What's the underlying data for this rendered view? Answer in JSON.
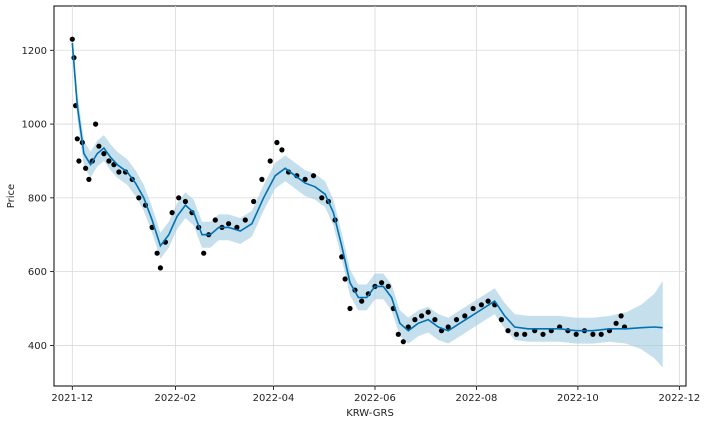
{
  "chart_data": {
    "type": "line",
    "title": "",
    "xlabel": "KRW-GRS",
    "ylabel": "Price",
    "x_range": [
      "2021-11-20",
      "2022-12-05"
    ],
    "ylim": [
      290,
      1320
    ],
    "grid": true,
    "x_ticks": [
      {
        "date": "2021-12-01",
        "label": "2021-12"
      },
      {
        "date": "2022-02-01",
        "label": "2022-02"
      },
      {
        "date": "2022-04-01",
        "label": "2022-04"
      },
      {
        "date": "2022-06-01",
        "label": "2022-06"
      },
      {
        "date": "2022-08-01",
        "label": "2022-08"
      },
      {
        "date": "2022-10-01",
        "label": "2022-10"
      },
      {
        "date": "2022-12-01",
        "label": "2022-12"
      }
    ],
    "y_ticks": [
      400,
      600,
      800,
      1000,
      1200
    ],
    "colors": {
      "observed": "#000000",
      "forecast": "#0072b2",
      "interval": "#9ecae1"
    },
    "series": [
      {
        "role": "observed",
        "points": [
          [
            "2021-12-01",
            1230
          ],
          [
            "2021-12-02",
            1180
          ],
          [
            "2021-12-03",
            1050
          ],
          [
            "2021-12-04",
            960
          ],
          [
            "2021-12-05",
            900
          ],
          [
            "2021-12-07",
            950
          ],
          [
            "2021-12-09",
            880
          ],
          [
            "2021-12-11",
            850
          ],
          [
            "2021-12-13",
            900
          ],
          [
            "2021-12-15",
            1000
          ],
          [
            "2021-12-17",
            940
          ],
          [
            "2021-12-20",
            920
          ],
          [
            "2021-12-23",
            900
          ],
          [
            "2021-12-26",
            890
          ],
          [
            "2021-12-29",
            870
          ],
          [
            "2022-01-02",
            870
          ],
          [
            "2022-01-06",
            850
          ],
          [
            "2022-01-10",
            800
          ],
          [
            "2022-01-14",
            780
          ],
          [
            "2022-01-18",
            720
          ],
          [
            "2022-01-21",
            650
          ],
          [
            "2022-01-23",
            610
          ],
          [
            "2022-01-26",
            680
          ],
          [
            "2022-01-30",
            760
          ],
          [
            "2022-02-03",
            800
          ],
          [
            "2022-02-07",
            790
          ],
          [
            "2022-02-11",
            760
          ],
          [
            "2022-02-15",
            720
          ],
          [
            "2022-02-18",
            650
          ],
          [
            "2022-02-21",
            700
          ],
          [
            "2022-02-25",
            740
          ],
          [
            "2022-03-01",
            720
          ],
          [
            "2022-03-05",
            730
          ],
          [
            "2022-03-10",
            720
          ],
          [
            "2022-03-15",
            740
          ],
          [
            "2022-03-20",
            790
          ],
          [
            "2022-03-25",
            850
          ],
          [
            "2022-03-30",
            900
          ],
          [
            "2022-04-03",
            950
          ],
          [
            "2022-04-06",
            930
          ],
          [
            "2022-04-10",
            870
          ],
          [
            "2022-04-15",
            860
          ],
          [
            "2022-04-20",
            850
          ],
          [
            "2022-04-25",
            860
          ],
          [
            "2022-04-30",
            800
          ],
          [
            "2022-05-04",
            790
          ],
          [
            "2022-05-08",
            740
          ],
          [
            "2022-05-12",
            640
          ],
          [
            "2022-05-14",
            580
          ],
          [
            "2022-05-17",
            500
          ],
          [
            "2022-05-20",
            550
          ],
          [
            "2022-05-24",
            520
          ],
          [
            "2022-05-28",
            540
          ],
          [
            "2022-06-01",
            560
          ],
          [
            "2022-06-05",
            570
          ],
          [
            "2022-06-09",
            560
          ],
          [
            "2022-06-12",
            500
          ],
          [
            "2022-06-15",
            430
          ],
          [
            "2022-06-18",
            410
          ],
          [
            "2022-06-21",
            450
          ],
          [
            "2022-06-25",
            470
          ],
          [
            "2022-06-29",
            480
          ],
          [
            "2022-07-03",
            490
          ],
          [
            "2022-07-07",
            470
          ],
          [
            "2022-07-11",
            440
          ],
          [
            "2022-07-15",
            450
          ],
          [
            "2022-07-20",
            470
          ],
          [
            "2022-07-25",
            480
          ],
          [
            "2022-07-30",
            500
          ],
          [
            "2022-08-04",
            510
          ],
          [
            "2022-08-08",
            520
          ],
          [
            "2022-08-12",
            510
          ],
          [
            "2022-08-16",
            470
          ],
          [
            "2022-08-20",
            440
          ],
          [
            "2022-08-25",
            430
          ],
          [
            "2022-08-30",
            430
          ],
          [
            "2022-09-05",
            440
          ],
          [
            "2022-09-10",
            430
          ],
          [
            "2022-09-15",
            440
          ],
          [
            "2022-09-20",
            450
          ],
          [
            "2022-09-25",
            440
          ],
          [
            "2022-09-30",
            430
          ],
          [
            "2022-10-05",
            440
          ],
          [
            "2022-10-10",
            430
          ],
          [
            "2022-10-15",
            430
          ],
          [
            "2022-10-20",
            440
          ],
          [
            "2022-10-24",
            460
          ],
          [
            "2022-10-27",
            480
          ],
          [
            "2022-10-29",
            450
          ]
        ]
      },
      {
        "role": "forecast",
        "points": [
          [
            "2021-12-01",
            1220
          ],
          [
            "2021-12-04",
            1050
          ],
          [
            "2021-12-08",
            920
          ],
          [
            "2021-12-12",
            890
          ],
          [
            "2021-12-16",
            920
          ],
          [
            "2021-12-20",
            935
          ],
          [
            "2021-12-24",
            910
          ],
          [
            "2021-12-28",
            890
          ],
          [
            "2022-01-03",
            870
          ],
          [
            "2022-01-08",
            840
          ],
          [
            "2022-01-13",
            800
          ],
          [
            "2022-01-18",
            740
          ],
          [
            "2022-01-23",
            670
          ],
          [
            "2022-01-28",
            700
          ],
          [
            "2022-02-02",
            750
          ],
          [
            "2022-02-07",
            780
          ],
          [
            "2022-02-12",
            760
          ],
          [
            "2022-02-17",
            700
          ],
          [
            "2022-02-22",
            700
          ],
          [
            "2022-02-27",
            720
          ],
          [
            "2022-03-05",
            720
          ],
          [
            "2022-03-12",
            710
          ],
          [
            "2022-03-19",
            730
          ],
          [
            "2022-03-26",
            800
          ],
          [
            "2022-04-02",
            860
          ],
          [
            "2022-04-08",
            880
          ],
          [
            "2022-04-14",
            860
          ],
          [
            "2022-04-20",
            840
          ],
          [
            "2022-04-26",
            830
          ],
          [
            "2022-05-02",
            810
          ],
          [
            "2022-05-07",
            760
          ],
          [
            "2022-05-12",
            670
          ],
          [
            "2022-05-17",
            570
          ],
          [
            "2022-05-22",
            530
          ],
          [
            "2022-05-27",
            530
          ],
          [
            "2022-06-01",
            560
          ],
          [
            "2022-06-06",
            560
          ],
          [
            "2022-06-11",
            530
          ],
          [
            "2022-06-16",
            460
          ],
          [
            "2022-06-21",
            440
          ],
          [
            "2022-06-27",
            460
          ],
          [
            "2022-07-03",
            470
          ],
          [
            "2022-07-09",
            450
          ],
          [
            "2022-07-15",
            440
          ],
          [
            "2022-07-22",
            460
          ],
          [
            "2022-07-29",
            480
          ],
          [
            "2022-08-05",
            500
          ],
          [
            "2022-08-12",
            520
          ],
          [
            "2022-08-18",
            480
          ],
          [
            "2022-08-24",
            450
          ],
          [
            "2022-09-01",
            445
          ],
          [
            "2022-09-10",
            445
          ],
          [
            "2022-09-20",
            445
          ],
          [
            "2022-09-30",
            440
          ],
          [
            "2022-10-10",
            440
          ],
          [
            "2022-10-20",
            445
          ],
          [
            "2022-10-30",
            445
          ],
          [
            "2022-11-08",
            448
          ],
          [
            "2022-11-16",
            450
          ],
          [
            "2022-11-21",
            448
          ]
        ],
        "lower": [
          [
            "2021-12-01",
            1190
          ],
          [
            "2021-12-04",
            1015
          ],
          [
            "2021-12-08",
            885
          ],
          [
            "2021-12-12",
            855
          ],
          [
            "2021-12-16",
            885
          ],
          [
            "2021-12-20",
            900
          ],
          [
            "2021-12-24",
            875
          ],
          [
            "2021-12-28",
            855
          ],
          [
            "2022-01-03",
            835
          ],
          [
            "2022-01-08",
            805
          ],
          [
            "2022-01-13",
            765
          ],
          [
            "2022-01-18",
            705
          ],
          [
            "2022-01-23",
            635
          ],
          [
            "2022-01-28",
            665
          ],
          [
            "2022-02-02",
            715
          ],
          [
            "2022-02-07",
            745
          ],
          [
            "2022-02-12",
            725
          ],
          [
            "2022-02-17",
            665
          ],
          [
            "2022-02-22",
            665
          ],
          [
            "2022-02-27",
            685
          ],
          [
            "2022-03-05",
            685
          ],
          [
            "2022-03-12",
            675
          ],
          [
            "2022-03-19",
            695
          ],
          [
            "2022-03-26",
            765
          ],
          [
            "2022-04-02",
            825
          ],
          [
            "2022-04-08",
            845
          ],
          [
            "2022-04-14",
            825
          ],
          [
            "2022-04-20",
            805
          ],
          [
            "2022-04-26",
            795
          ],
          [
            "2022-05-02",
            775
          ],
          [
            "2022-05-07",
            725
          ],
          [
            "2022-05-12",
            635
          ],
          [
            "2022-05-17",
            535
          ],
          [
            "2022-05-22",
            495
          ],
          [
            "2022-05-27",
            495
          ],
          [
            "2022-06-01",
            525
          ],
          [
            "2022-06-06",
            525
          ],
          [
            "2022-06-11",
            495
          ],
          [
            "2022-06-16",
            425
          ],
          [
            "2022-06-21",
            405
          ],
          [
            "2022-06-27",
            425
          ],
          [
            "2022-07-03",
            435
          ],
          [
            "2022-07-09",
            415
          ],
          [
            "2022-07-15",
            405
          ],
          [
            "2022-07-22",
            425
          ],
          [
            "2022-07-29",
            445
          ],
          [
            "2022-08-05",
            465
          ],
          [
            "2022-08-12",
            485
          ],
          [
            "2022-08-18",
            445
          ],
          [
            "2022-08-24",
            415
          ],
          [
            "2022-09-01",
            410
          ],
          [
            "2022-09-10",
            410
          ],
          [
            "2022-09-20",
            410
          ],
          [
            "2022-09-30",
            405
          ],
          [
            "2022-10-10",
            405
          ],
          [
            "2022-10-20",
            410
          ],
          [
            "2022-10-30",
            405
          ],
          [
            "2022-11-08",
            390
          ],
          [
            "2022-11-16",
            365
          ],
          [
            "2022-11-21",
            340
          ]
        ],
        "upper": [
          [
            "2021-12-01",
            1250
          ],
          [
            "2021-12-04",
            1085
          ],
          [
            "2021-12-08",
            955
          ],
          [
            "2021-12-12",
            925
          ],
          [
            "2021-12-16",
            955
          ],
          [
            "2021-12-20",
            970
          ],
          [
            "2021-12-24",
            945
          ],
          [
            "2021-12-28",
            925
          ],
          [
            "2022-01-03",
            905
          ],
          [
            "2022-01-08",
            875
          ],
          [
            "2022-01-13",
            835
          ],
          [
            "2022-01-18",
            775
          ],
          [
            "2022-01-23",
            705
          ],
          [
            "2022-01-28",
            735
          ],
          [
            "2022-02-02",
            785
          ],
          [
            "2022-02-07",
            815
          ],
          [
            "2022-02-12",
            795
          ],
          [
            "2022-02-17",
            735
          ],
          [
            "2022-02-22",
            735
          ],
          [
            "2022-02-27",
            755
          ],
          [
            "2022-03-05",
            755
          ],
          [
            "2022-03-12",
            745
          ],
          [
            "2022-03-19",
            765
          ],
          [
            "2022-03-26",
            835
          ],
          [
            "2022-04-02",
            895
          ],
          [
            "2022-04-08",
            915
          ],
          [
            "2022-04-14",
            895
          ],
          [
            "2022-04-20",
            875
          ],
          [
            "2022-04-26",
            865
          ],
          [
            "2022-05-02",
            845
          ],
          [
            "2022-05-07",
            795
          ],
          [
            "2022-05-12",
            705
          ],
          [
            "2022-05-17",
            605
          ],
          [
            "2022-05-22",
            565
          ],
          [
            "2022-05-27",
            565
          ],
          [
            "2022-06-01",
            595
          ],
          [
            "2022-06-06",
            595
          ],
          [
            "2022-06-11",
            565
          ],
          [
            "2022-06-16",
            495
          ],
          [
            "2022-06-21",
            475
          ],
          [
            "2022-06-27",
            495
          ],
          [
            "2022-07-03",
            505
          ],
          [
            "2022-07-09",
            485
          ],
          [
            "2022-07-15",
            475
          ],
          [
            "2022-07-22",
            495
          ],
          [
            "2022-07-29",
            515
          ],
          [
            "2022-08-05",
            535
          ],
          [
            "2022-08-12",
            555
          ],
          [
            "2022-08-18",
            515
          ],
          [
            "2022-08-24",
            485
          ],
          [
            "2022-09-01",
            480
          ],
          [
            "2022-09-10",
            480
          ],
          [
            "2022-09-20",
            480
          ],
          [
            "2022-09-30",
            475
          ],
          [
            "2022-10-10",
            475
          ],
          [
            "2022-10-20",
            480
          ],
          [
            "2022-10-30",
            490
          ],
          [
            "2022-11-08",
            510
          ],
          [
            "2022-11-16",
            540
          ],
          [
            "2022-11-21",
            575
          ]
        ]
      }
    ]
  }
}
